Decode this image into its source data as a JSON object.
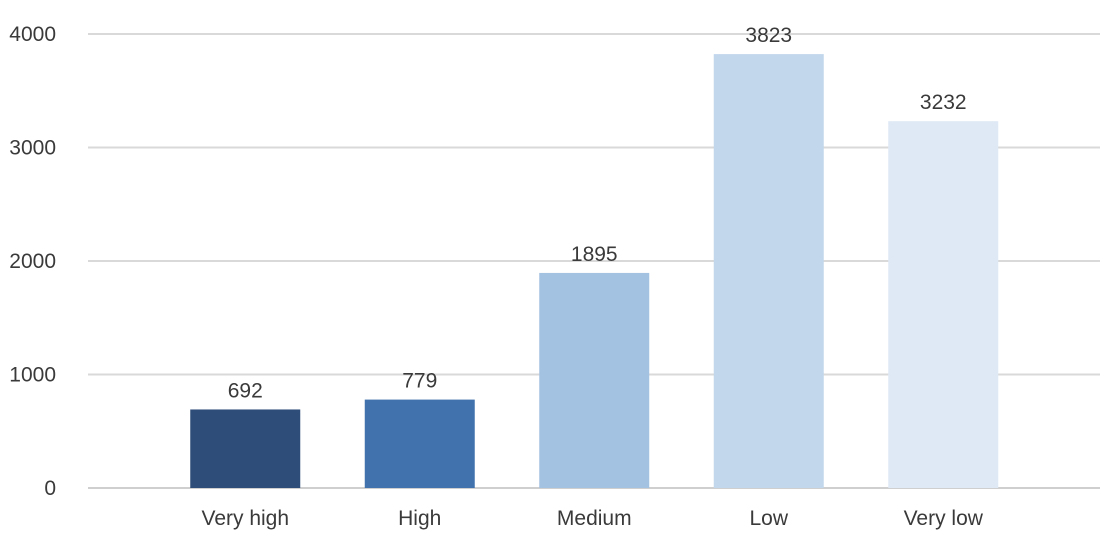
{
  "chart_data": {
    "type": "bar",
    "title": "",
    "xlabel": "",
    "ylabel": "",
    "categories": [
      "Very high",
      "High",
      "Medium",
      "Low",
      "Very low"
    ],
    "values": [
      692,
      779,
      1895,
      3823,
      3232
    ],
    "data_labels": [
      "692",
      "779",
      "1895",
      "3823",
      "3232"
    ],
    "ylim": [
      0,
      4000
    ],
    "yticks": [
      0,
      1000,
      2000,
      3000,
      4000
    ],
    "ytick_labels": [
      "0",
      "1000",
      "2000",
      "3000",
      "4000"
    ],
    "grid": true,
    "legend": "none",
    "colors": [
      "#2e4d78",
      "#4272ad",
      "#a3c1e1",
      "#c2d7ec",
      "#dfe9f5"
    ]
  }
}
